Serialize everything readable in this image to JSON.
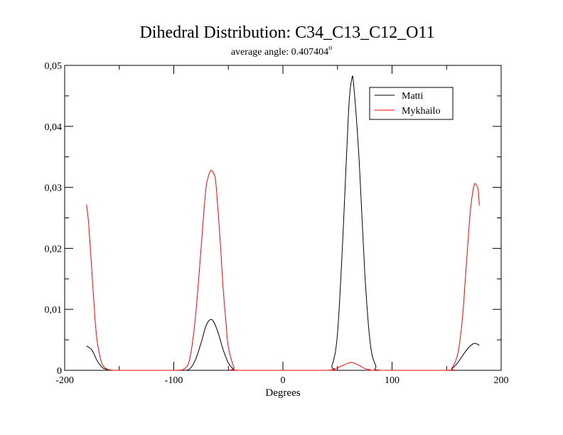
{
  "chart_data": {
    "type": "line",
    "title": "Dihedral Distribution: C34_C13_C12_O11",
    "subtitle": "average angle: 0.407404",
    "subtitle_superscript": "o",
    "xlabel": "Degrees",
    "ylabel": "",
    "xlim": [
      -200,
      200
    ],
    "ylim": [
      0,
      0.05
    ],
    "x_ticks": [
      -200,
      -100,
      0,
      100,
      200
    ],
    "x_tick_labels": [
      "-200",
      "-100",
      "0",
      "100",
      "200"
    ],
    "y_ticks": [
      0,
      0.01,
      0.02,
      0.03,
      0.04,
      0.05
    ],
    "y_tick_labels": [
      "0",
      "0,01",
      "0,02",
      "0,03",
      "0,04",
      "0,05"
    ],
    "grid": false,
    "legend_position": "top-right",
    "series": [
      {
        "name": "Matti",
        "color": "#000000",
        "x": [
          -180,
          -175,
          -170,
          -165,
          -160,
          -155,
          -150,
          -100,
          -90,
          -85,
          -80,
          -75,
          -70,
          -65,
          -60,
          -55,
          -50,
          -45,
          -40,
          40,
          45,
          50,
          55,
          60,
          63,
          65,
          70,
          75,
          80,
          85,
          90,
          150,
          155,
          160,
          165,
          170,
          175,
          178,
          180
        ],
        "y": [
          0.004,
          0.0033,
          0.0015,
          0.0004,
          0.0001,
          0,
          0,
          0,
          0,
          0.0003,
          0.0018,
          0.0045,
          0.0075,
          0.0083,
          0.0065,
          0.0035,
          0.0012,
          0.0002,
          0,
          0,
          0.0008,
          0.006,
          0.022,
          0.042,
          0.0477,
          0.0465,
          0.034,
          0.016,
          0.0045,
          0.0008,
          0,
          0,
          0.0003,
          0.0012,
          0.0025,
          0.0037,
          0.0044,
          0.0043,
          0.0041
        ]
      },
      {
        "name": "Mykhailo",
        "color": "#ff0000",
        "x": [
          -180,
          -178,
          -175,
          -172,
          -170,
          -167,
          -165,
          -160,
          -155,
          -150,
          -100,
          -90,
          -85,
          -80,
          -75,
          -72,
          -70,
          -67,
          -65,
          -62,
          -60,
          -57,
          -55,
          -52,
          -50,
          -45,
          -40,
          40,
          45,
          50,
          55,
          60,
          63,
          65,
          70,
          75,
          80,
          85,
          150,
          155,
          160,
          163,
          165,
          167,
          170,
          172,
          175,
          177,
          179,
          180
        ],
        "y": [
          0.0272,
          0.024,
          0.016,
          0.008,
          0.0045,
          0.0018,
          0.0008,
          0.0001,
          0,
          0,
          0,
          0.0003,
          0.0022,
          0.009,
          0.02,
          0.027,
          0.0305,
          0.0325,
          0.0327,
          0.0315,
          0.0275,
          0.02,
          0.014,
          0.0075,
          0.0038,
          0.0006,
          0,
          0,
          0.0001,
          0.0004,
          0.0008,
          0.0012,
          0.0013,
          0.0012,
          0.0008,
          0.0003,
          0.0001,
          0,
          0,
          0.0004,
          0.0025,
          0.006,
          0.0095,
          0.0145,
          0.022,
          0.0265,
          0.0302,
          0.0305,
          0.0295,
          0.027
        ]
      }
    ]
  }
}
